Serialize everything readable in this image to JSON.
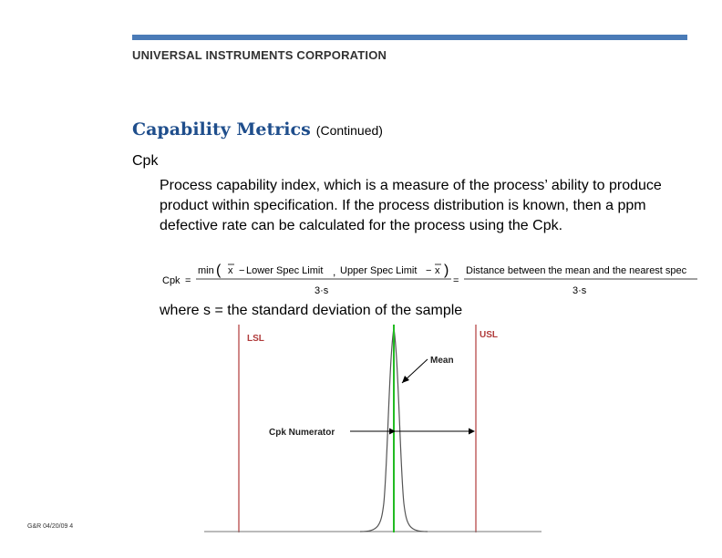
{
  "header": {
    "company": "UNIVERSAL INSTRUMENTS CORPORATION",
    "accent_color": "#4a7bb7"
  },
  "slide": {
    "title": "Capability Metrics",
    "title_suffix": "(Continued)",
    "term": "Cpk",
    "description": "Process capability index, which is a measure of the process’ ability to produce product within specification. If the process distribution is known, then a ppm defective rate can be calculated for the process using the Cpk.",
    "where_text": "where s = the standard deviation of the sample"
  },
  "formula": {
    "lhs": "Cpk",
    "eq": "=",
    "min": "min",
    "xbar": "x",
    "lower": "Lower Spec Limit",
    "comma": ",",
    "upper": "Upper Spec Limit",
    "minus": "−",
    "denominator": "3·s",
    "rhs_numerator": "Distance between the mean and the nearest spec",
    "rhs_denominator": "3·s"
  },
  "diagram": {
    "lsl_label": "LSL",
    "usl_label": "USL",
    "mean_label": "Mean",
    "numerator_label": "Cpk  Numerator",
    "spec_color": "#b03a3a",
    "mean_color": "#22bb22"
  },
  "footer": {
    "text": "G&R 04/20/09 4"
  }
}
